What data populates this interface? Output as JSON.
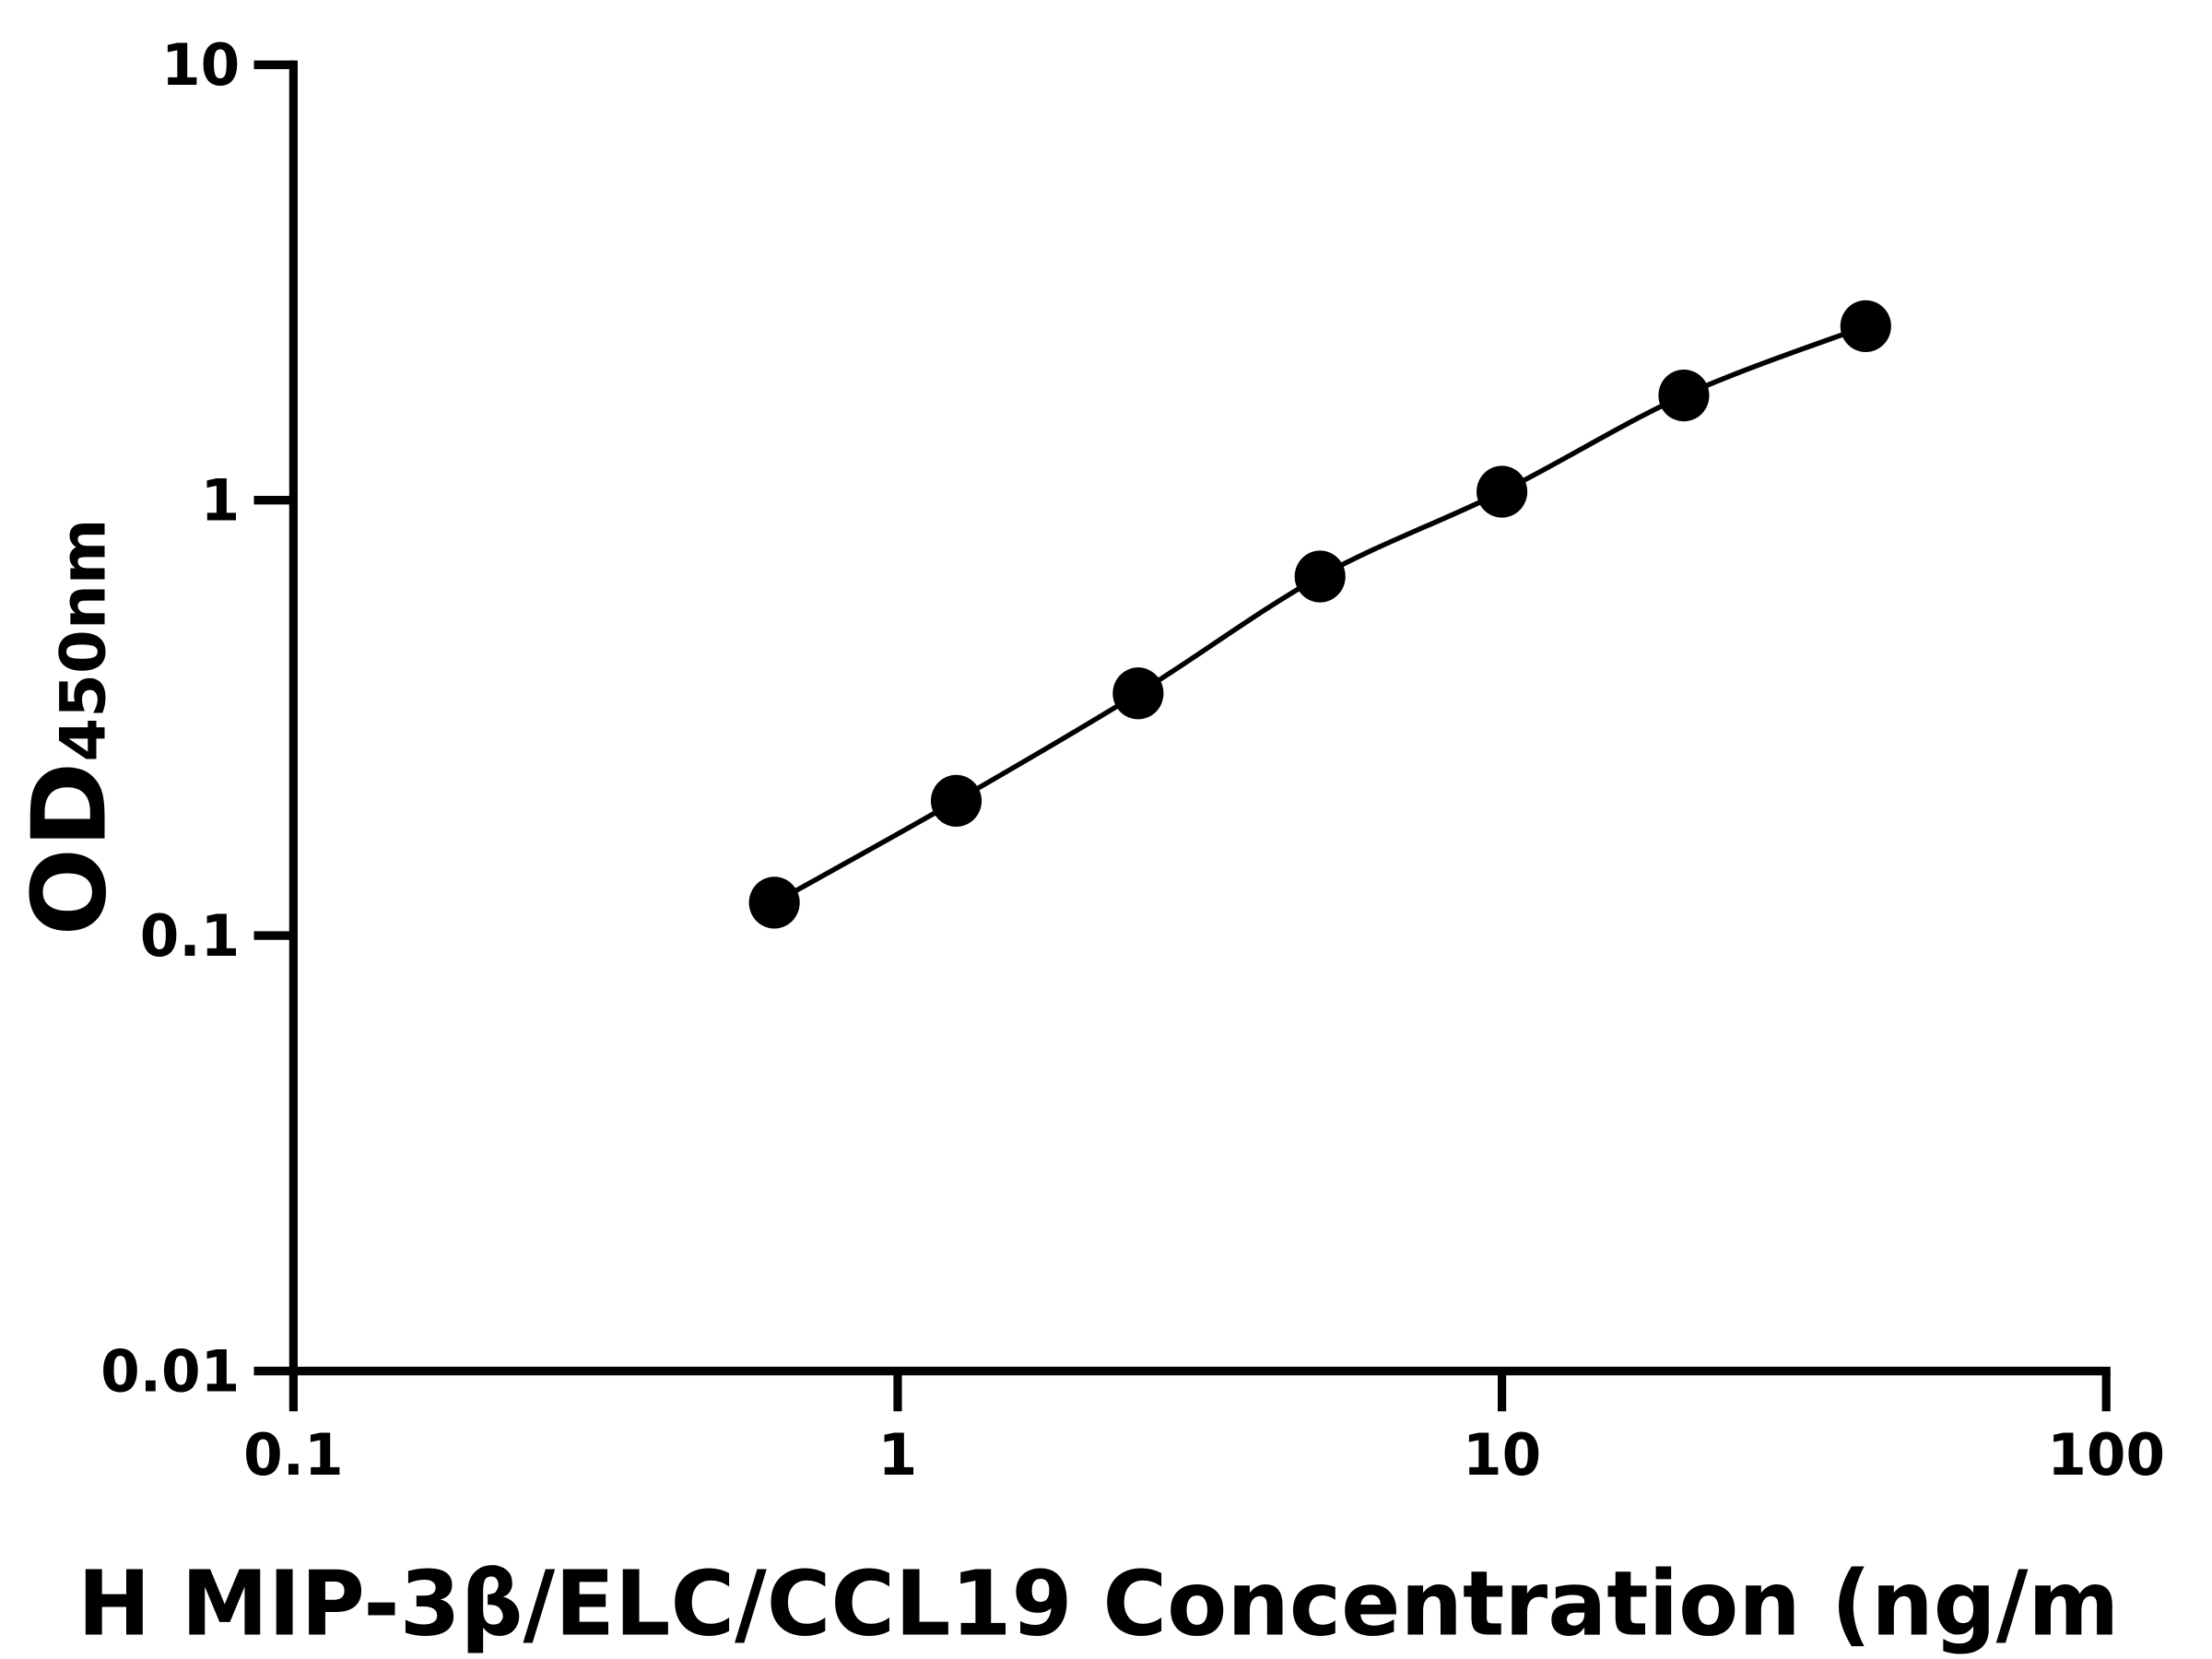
{
  "chart_data": {
    "type": "scatter",
    "x_label": "H MIP-3β/ELC/CCL19 Concentration (ng/m",
    "y_label": "OD",
    "y_label_sub": "450nm",
    "x": [
      0.625,
      1.25,
      2.5,
      5,
      10,
      20,
      40
    ],
    "values": [
      0.119,
      0.204,
      0.36,
      0.668,
      1.046,
      1.74,
      2.51
    ],
    "color": "#000000",
    "xscale": "log",
    "yscale": "log",
    "xlim": [
      0.1,
      100
    ],
    "xticks": [
      0.1,
      1,
      10,
      100
    ],
    "ylim": [
      0.01,
      10
    ],
    "yticks": [
      0.01,
      0.1,
      1,
      10
    ],
    "grid": false
  }
}
